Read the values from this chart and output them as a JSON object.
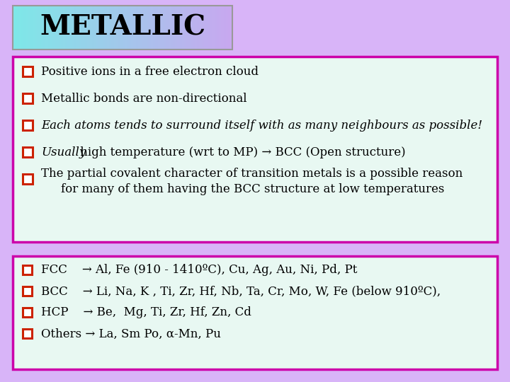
{
  "title": "METALLIC",
  "bg_color": "#d8b4f8",
  "title_box_color_top": "#7ee8e8",
  "title_box_color_bottom": "#c8a8f0",
  "box_bg": "#e8f8f2",
  "box_border_color": "#cc00aa",
  "title_border_color": "#999999",
  "bullet_border_color": "#cc2200",
  "bullet_fill_color": "#ffffff",
  "text_color": "#000000",
  "bullet1": [
    {
      "text": "Positive ions in a free electron cloud",
      "italic": false,
      "italic_word": ""
    },
    {
      "text": "Metallic bonds are non-directional",
      "italic": false,
      "italic_word": ""
    },
    {
      "text": "Each atoms tends to surround itself with as many neighbours as possible!",
      "italic": true,
      "italic_word": ""
    },
    {
      "text": " high temperature (wrt to MP) → BCC (Open structure)",
      "italic": false,
      "italic_word": "Usually"
    },
    {
      "text": "The partial covalent character of transition metals is a possible reason",
      "italic": false,
      "italic_word": "",
      "line2": "for many of them having the BCC structure at low temperatures"
    }
  ],
  "bullet2": [
    "FCC    → Al, Fe (910 - 1410ºC), Cu, Ag, Au, Ni, Pd, Pt",
    "BCC    → Li, Na, K , Ti, Zr, Hf, Nb, Ta, Cr, Mo, W, Fe (below 910ºC),",
    "HCP    → Be,  Mg, Ti, Zr, Hf, Zn, Cd",
    "Others → La, Sm Po, α-Mn, Pu"
  ]
}
